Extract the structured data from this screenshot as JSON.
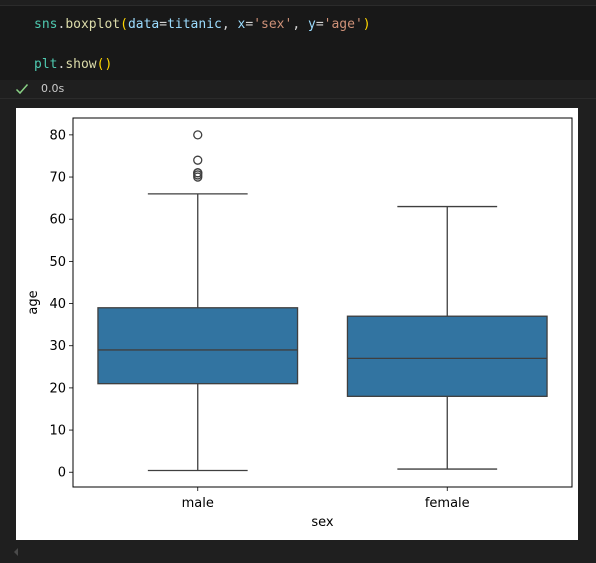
{
  "cell": {
    "line1": {
      "var": "sns",
      "dot": ".",
      "fn": "boxplot",
      "open": "(",
      "p1": "data",
      "eq1": "=",
      "v1": "titanic",
      "comma1": ", ",
      "p2": "x",
      "eq2": "=",
      "v2": "'sex'",
      "comma2": ", ",
      "p3": "y",
      "eq3": "=",
      "v3": "'age'",
      "close": ")"
    },
    "line2": {
      "var": "plt",
      "dot": ".",
      "fn": "show",
      "parens": "()"
    }
  },
  "execution": {
    "status_icon": "check-icon",
    "status_color": "#89d185",
    "time": "0.0s"
  },
  "chart_data": {
    "type": "boxplot",
    "xlabel": "sex",
    "ylabel": "age",
    "ylim": [
      -3.5,
      84
    ],
    "yticks": [
      0,
      10,
      20,
      30,
      40,
      50,
      60,
      70,
      80
    ],
    "box_color": "#3274a1",
    "categories": [
      "male",
      "female"
    ],
    "boxes": [
      {
        "category": "male",
        "whisker_low": 0.42,
        "q1": 21,
        "median": 29,
        "q3": 39,
        "whisker_high": 66,
        "outliers": [
          70,
          70.5,
          71,
          71,
          74,
          80
        ]
      },
      {
        "category": "female",
        "whisker_low": 0.75,
        "q1": 18,
        "median": 27,
        "q3": 37,
        "whisker_high": 63,
        "outliers": []
      }
    ]
  }
}
